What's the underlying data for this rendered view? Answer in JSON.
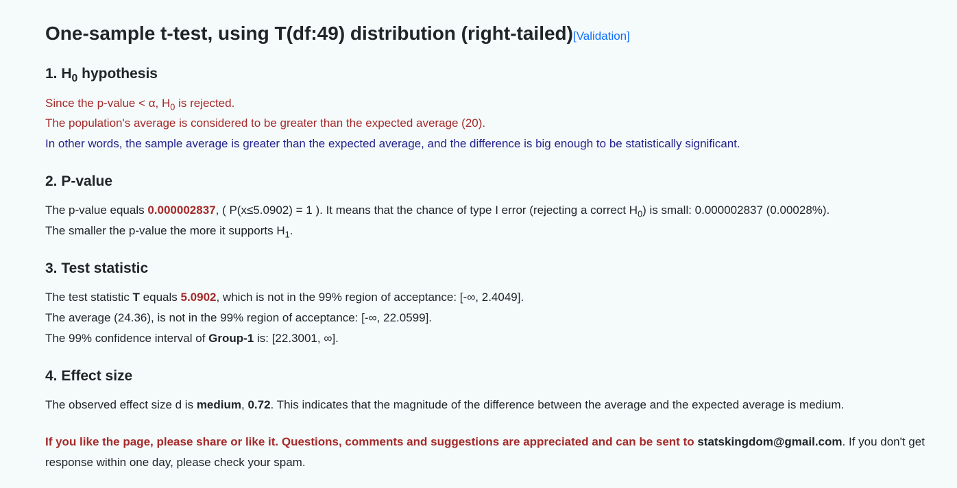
{
  "title": {
    "main": "One-sample t-test, using T(df:49) distribution (right-tailed)",
    "validation": "[Validation]"
  },
  "colors": {
    "red": "#a52a2a",
    "blue": "#23238e",
    "link": "#0d6efd",
    "text": "#212529",
    "background": "#f5fafa"
  },
  "section1": {
    "heading_prefix": "1. H",
    "heading_sub": "0",
    "heading_suffix": " hypothesis",
    "line1_prefix": "Since the p-value < α, H",
    "line1_sub": "0",
    "line1_suffix": " is rejected.",
    "line2": "The population's average is considered to be greater than the expected average (20).",
    "line3": "In other words, the sample average is greater than the expected average, and the difference is big enough to be statistically significant."
  },
  "section2": {
    "heading": "2. P-value",
    "text_before_pvalue": "The p-value equals ",
    "pvalue": "0.000002837",
    "text_after_pvalue": ", ( P(x≤5.0902) = 1 ). It means that the chance of type I error (rejecting a correct H",
    "sub_h0": "0",
    "text_after_h0": ") is small: 0.000002837 (0.00028%).",
    "line2_prefix": "The smaller the p-value the more it supports H",
    "line2_sub": "1",
    "line2_suffix": "."
  },
  "section3": {
    "heading": "3. Test statistic",
    "line1_before_T": "The test statistic ",
    "T_label": "T",
    "line1_after_T": " equals ",
    "T_value": "5.0902",
    "line1_suffix": ", which is not in the 99% region of acceptance: [-∞, 2.4049].",
    "line2": "The average (24.36), is not in the 99% region of acceptance: [-∞, 22.0599].",
    "line3_prefix": "The 99% confidence interval of ",
    "group_label": "Group-1",
    "line3_suffix": " is: [22.3001, ∞]."
  },
  "section4": {
    "heading": "4. Effect size",
    "text_before_medium": "The observed effect size d is ",
    "medium_label": "medium",
    "text_mid": ", ",
    "effect_value": "0.72",
    "text_after": ". This indicates that the magnitude of the difference between the average and the expected average is medium."
  },
  "share": {
    "bold_red": "If you like the page, please share or like it. Questions, comments and suggestions are appreciated and can be sent to ",
    "email": "statskingdom@gmail.com",
    "after_email": ". If you don't get response within one day, please check your spam."
  }
}
